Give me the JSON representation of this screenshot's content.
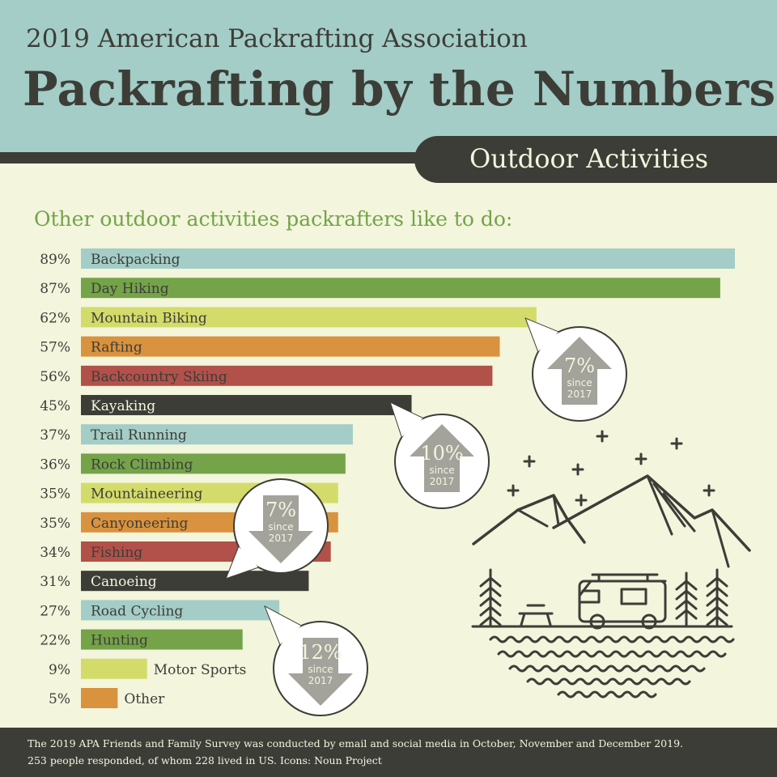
{
  "header": {
    "association": "2019 American Packrafting Association",
    "title": "Packrafting by the Numbers",
    "tab": "Outdoor Activities"
  },
  "subtitle": "Other outdoor activities packrafters like to do:",
  "chart_data": {
    "type": "bar",
    "orientation": "horizontal",
    "title": "Other outdoor activities packrafters like to do:",
    "unit": "%",
    "categories": [
      "Backpacking",
      "Day Hiking",
      "Mountain Biking",
      "Rafting",
      "Backcountry Skiing",
      "Kayaking",
      "Trail Running",
      "Rock Climbing",
      "Mountaineering",
      "Canyoneering",
      "Fishing",
      "Canoeing",
      "Road Cycling",
      "Hunting",
      "Motor Sports",
      "Other"
    ],
    "values": [
      89,
      87,
      62,
      57,
      56,
      45,
      37,
      36,
      35,
      35,
      34,
      31,
      27,
      22,
      9,
      5
    ],
    "value_labels": [
      "89%",
      "87%",
      "62%",
      "57%",
      "56%",
      "45%",
      "37%",
      "36%",
      "35%",
      "35%",
      "34%",
      "31%",
      "27%",
      "22%",
      "9%",
      "5%"
    ],
    "colors": [
      "#a3cdc6",
      "#74a34a",
      "#d3dc6a",
      "#d9923e",
      "#b2504a",
      "#3d3d38",
      "#a3cdc6",
      "#74a34a",
      "#d3dc6a",
      "#d9923e",
      "#b2504a",
      "#3d3d38",
      "#a3cdc6",
      "#74a34a",
      "#d3dc6a",
      "#d9923e"
    ],
    "xlim": [
      0,
      89
    ],
    "grid": false,
    "annotations": [
      {
        "category": "Mountain Biking",
        "change": "7%",
        "direction": "up",
        "note": "since 2017"
      },
      {
        "category": "Kayaking",
        "change": "10%",
        "direction": "up",
        "note": "since 2017"
      },
      {
        "category": "Canoeing",
        "change": "7%",
        "direction": "down",
        "note": "since 2017"
      },
      {
        "category": "Road Cycling",
        "change": "12%",
        "direction": "down",
        "note": "since 2017"
      }
    ]
  },
  "illustration": {
    "icon": "camping-rv-mountains-icon"
  },
  "footer": {
    "line1": "The 2019 APA Friends and Family Survey was conducted by email and social media in October, November and December 2019.",
    "line2": "253 people responded, of whom 228 lived in US.   Icons: Noun Project"
  }
}
